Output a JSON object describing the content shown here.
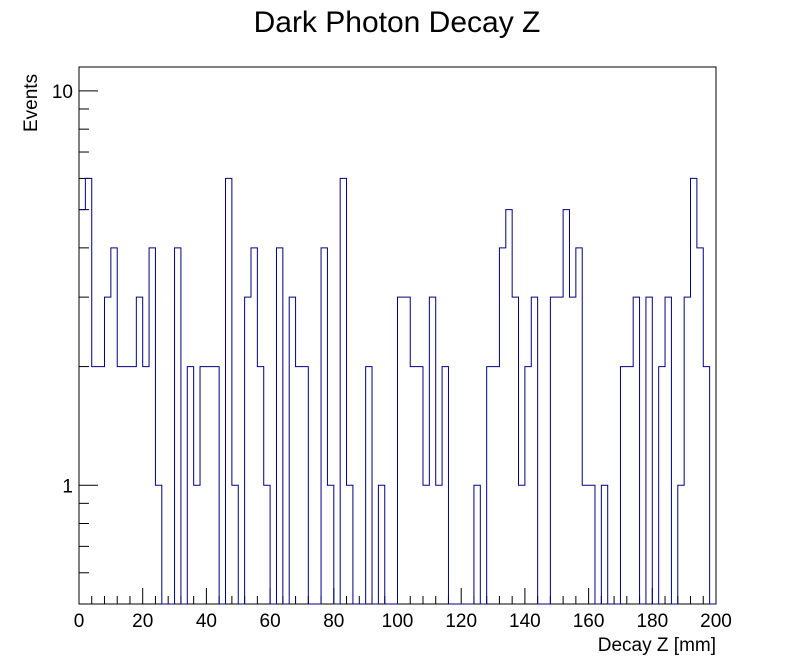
{
  "chart_data": {
    "type": "histogram",
    "title": "Dark Photon Decay Z",
    "xlabel": "Decay Z [mm]",
    "ylabel": "Events",
    "xlim": [
      0,
      200
    ],
    "ylim": [
      0.5,
      11.5
    ],
    "yscale": "log",
    "bin_width": 2,
    "grid": false,
    "line_color": "#000080",
    "x_ticks": [
      "0",
      "20",
      "40",
      "60",
      "80",
      "100",
      "120",
      "140",
      "160",
      "180",
      "200"
    ],
    "x_tick_values": [
      0,
      20,
      40,
      60,
      80,
      100,
      120,
      140,
      160,
      180,
      200
    ],
    "y_ticks": [
      "1",
      "10"
    ],
    "y_tick_values": [
      1,
      10
    ],
    "values": [
      5,
      6,
      2,
      2,
      3,
      4,
      2,
      2,
      2,
      3,
      2,
      4,
      1,
      0,
      0,
      4,
      0,
      2,
      1,
      2,
      2,
      2,
      0,
      6,
      1,
      0,
      3,
      4,
      2,
      1,
      0,
      4,
      0,
      3,
      2,
      2,
      0,
      0,
      4,
      1,
      0,
      6,
      1,
      0,
      0,
      2,
      0,
      1,
      0,
      0,
      3,
      3,
      2,
      2,
      1,
      3,
      1,
      2,
      0,
      0,
      0,
      0,
      1,
      0,
      2,
      2,
      4,
      5,
      3,
      1,
      2,
      3,
      0,
      0,
      3,
      3,
      5,
      3,
      4,
      1,
      1,
      0,
      1,
      0,
      0,
      2,
      2,
      3,
      0,
      3,
      0,
      2,
      3,
      0,
      1,
      3,
      6,
      4,
      2,
      0
    ]
  }
}
